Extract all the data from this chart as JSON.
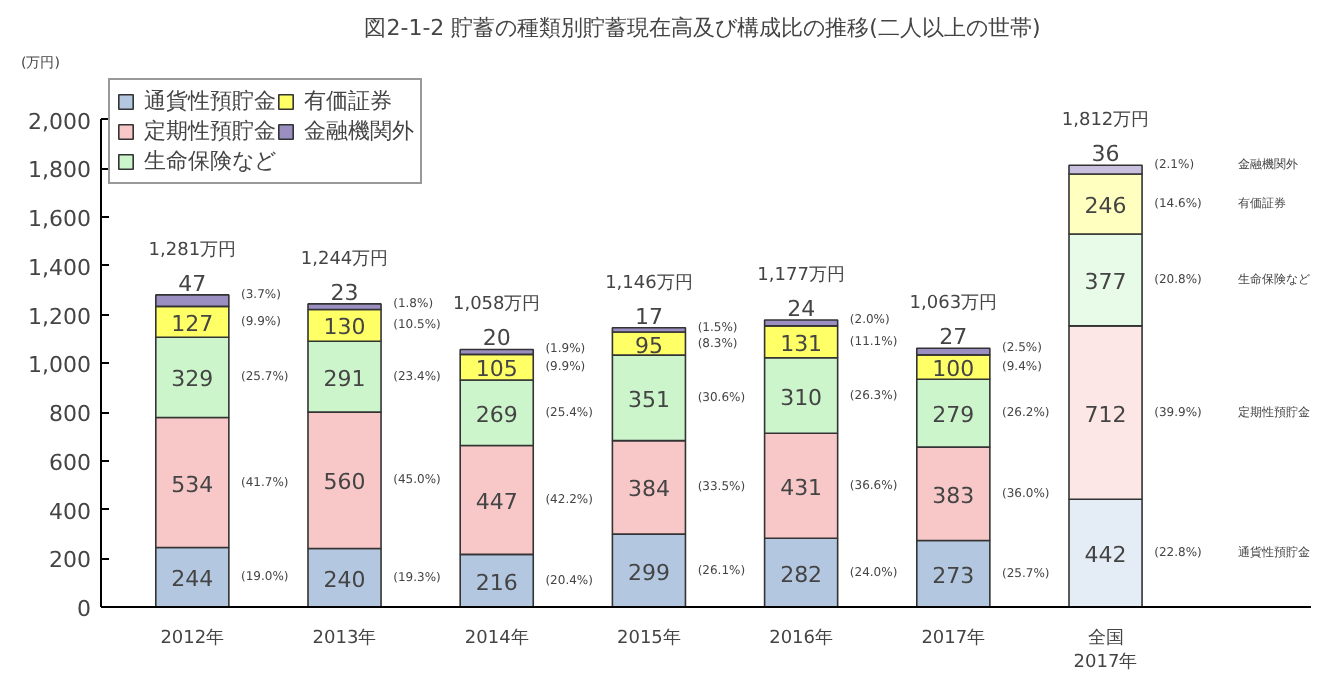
{
  "chart_data": {
    "type": "bar",
    "stacked": true,
    "title": "図2-1-2  貯蓄の種類別貯蓄現在高及び構成比の推移(二人以上の世帯)",
    "ylabel": "(万円)",
    "categories": [
      "2012年",
      "2013年",
      "2014年",
      "2015年",
      "2016年",
      "2017年",
      "全国\n2017年"
    ],
    "series": [
      {
        "name": "通貨性預貯金",
        "colors": [
          "#b4c7e0",
          "#b4c7e0",
          "#b4c7e0",
          "#b4c7e0",
          "#b4c7e0",
          "#b4c7e0",
          "#e4ecf5"
        ],
        "values": [
          244,
          240,
          216,
          299,
          282,
          273,
          442
        ]
      },
      {
        "name": "定期性預貯金",
        "colors": [
          "#f8c8c8",
          "#f8c8c8",
          "#f8c8c8",
          "#f8c8c8",
          "#f8c8c8",
          "#f8c8c8",
          "#fce6e6"
        ],
        "values": [
          534,
          560,
          447,
          384,
          431,
          383,
          712
        ]
      },
      {
        "name": "生命保険など",
        "colors": [
          "#ccf5cc",
          "#ccf5cc",
          "#ccf5cc",
          "#ccf5cc",
          "#ccf5cc",
          "#ccf5cc",
          "#e8fae8"
        ],
        "values": [
          329,
          291,
          269,
          351,
          310,
          279,
          377
        ]
      },
      {
        "name": "有価証券",
        "colors": [
          "#ffff66",
          "#ffff66",
          "#ffff66",
          "#ffff66",
          "#ffff66",
          "#ffff66",
          "#ffffc0"
        ],
        "values": [
          127,
          130,
          105,
          95,
          131,
          100,
          246
        ]
      },
      {
        "name": "金融機関外",
        "colors": [
          "#9b8fc2",
          "#9b8fc2",
          "#9b8fc2",
          "#9b8fc2",
          "#9b8fc2",
          "#9b8fc2",
          "#c8c0dc"
        ],
        "values": [
          47,
          23,
          20,
          17,
          24,
          27,
          36
        ]
      }
    ],
    "totals": [
      "1,281万円",
      "1,244万円",
      "1,058万円",
      "1,146万円",
      "1,177万円",
      "1,063万円",
      "1,812万円"
    ],
    "data_labels": true,
    "ylim": [
      0,
      2000
    ],
    "yticks": [
      0,
      200,
      400,
      600,
      800,
      {
        "value": 1000,
        "label": "1,000"
      },
      {
        "value": 1200,
        "label": "1,200"
      },
      {
        "value": 1400,
        "label": "1,400"
      },
      {
        "value": 1600,
        "label": "1,600"
      },
      {
        "value": 1800,
        "label": "1,800"
      },
      {
        "value": 2000,
        "label": "2,000"
      }
    ],
    "grid": false,
    "legend": "top left",
    "annotations": [
      "(19.0%)",
      "(41.7%)",
      "(25.7%)",
      "(9.9%)",
      "(3.7%)",
      "(19.3%)",
      "(45.0%)",
      "(23.4%)",
      "(10.5%)",
      "(1.8%)",
      "(20.4%)",
      "(42.2%)",
      "(25.4%)",
      "(9.9%)",
      "(1.9%)",
      "(26.1%)",
      "(33.5%)",
      "(30.6%)",
      "(8.3%)",
      "(1.5%)",
      "(24.0%)",
      "(36.6%)",
      "(26.3%)",
      "(11.1%)",
      "(2.0%)",
      "(25.7%)",
      "(36.0%)",
      "(26.2%)",
      "(9.4%)",
      "(2.5%)",
      "(22.8%)",
      "(39.9%)",
      "(20.8%)",
      "(14.6%)",
      "(2.1%)",
      "通貨性預貯金",
      "定期性預貯金",
      "生命保険など",
      "有価証券",
      "金融機関外"
    ]
  }
}
